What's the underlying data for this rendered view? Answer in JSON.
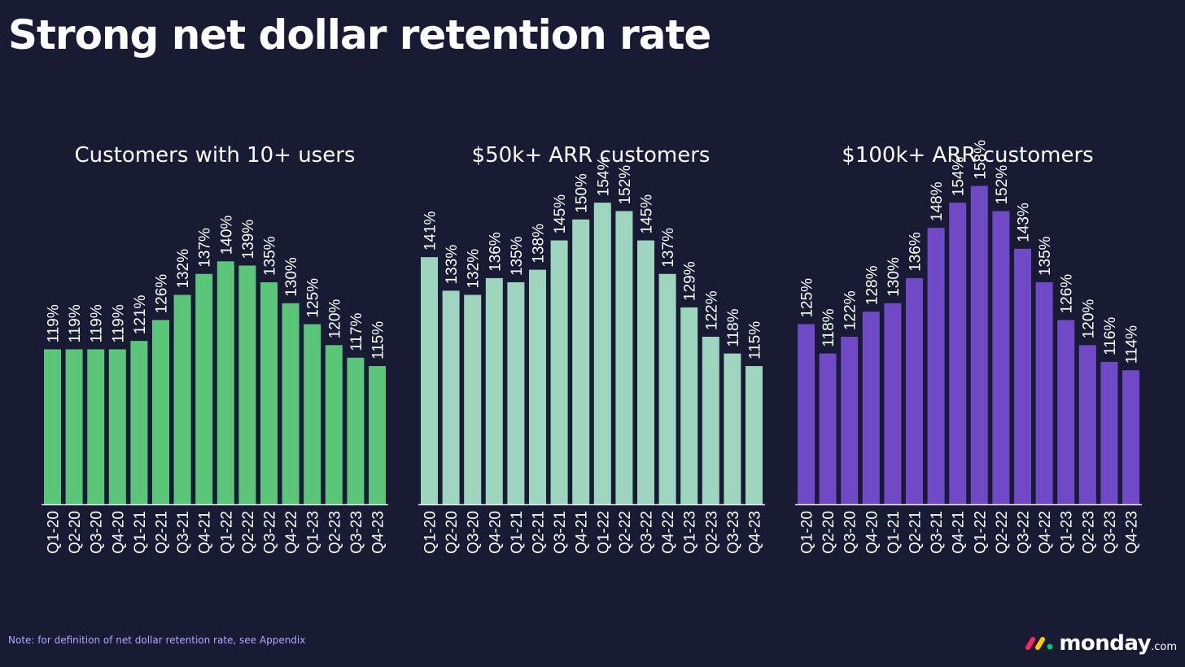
{
  "title": "Strong net dollar retention rate",
  "footnote": "Note: for definition of net dollar retention rate, see Appendix",
  "brand": {
    "name": "monday",
    "suffix": ".com"
  },
  "colors": {
    "background": "#181b33",
    "series1": "#5bc57a",
    "series2": "#9dd5bf",
    "series3": "#7049c7",
    "axis": "#e6e6f0"
  },
  "chart_data": [
    {
      "type": "bar",
      "title": "Customers with 10+ users",
      "categories": [
        "Q1-20",
        "Q2-20",
        "Q3-20",
        "Q4-20",
        "Q1-21",
        "Q2-21",
        "Q3-21",
        "Q4-21",
        "Q1-22",
        "Q2-22",
        "Q3-22",
        "Q4-22",
        "Q1-23",
        "Q2-23",
        "Q3-23",
        "Q4-23"
      ],
      "values": [
        119,
        119,
        119,
        119,
        121,
        126,
        132,
        137,
        140,
        139,
        135,
        130,
        125,
        120,
        117,
        115
      ],
      "value_suffix": "%",
      "color": "#5bc57a"
    },
    {
      "type": "bar",
      "title": "$50k+ ARR customers",
      "categories": [
        "Q1-20",
        "Q2-20",
        "Q3-20",
        "Q4-20",
        "Q1-21",
        "Q2-21",
        "Q3-21",
        "Q4-21",
        "Q1-22",
        "Q2-22",
        "Q3-22",
        "Q4-22",
        "Q1-23",
        "Q2-23",
        "Q3-23",
        "Q4-23"
      ],
      "values": [
        141,
        133,
        132,
        136,
        135,
        138,
        145,
        150,
        154,
        152,
        145,
        137,
        129,
        122,
        118,
        115
      ],
      "value_suffix": "%",
      "color": "#9dd5bf"
    },
    {
      "type": "bar",
      "title": "$100k+ ARR customers",
      "categories": [
        "Q1-20",
        "Q2-20",
        "Q3-20",
        "Q4-20",
        "Q1-21",
        "Q2-21",
        "Q3-21",
        "Q4-21",
        "Q1-22",
        "Q2-22",
        "Q3-22",
        "Q4-22",
        "Q1-23",
        "Q2-23",
        "Q3-23",
        "Q4-23"
      ],
      "values": [
        125,
        118,
        122,
        128,
        130,
        136,
        148,
        154,
        158,
        152,
        143,
        135,
        126,
        120,
        116,
        114
      ],
      "value_suffix": "%",
      "color": "#7049c7"
    }
  ]
}
